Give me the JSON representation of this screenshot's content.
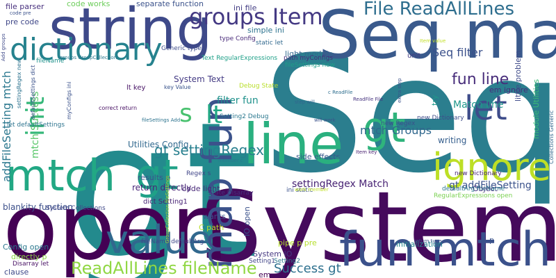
{
  "words": [
    {
      "text": "gt",
      "color": "#238a8d"
    },
    {
      "text": "Seq",
      "color": "#2b7e8e"
    },
    {
      "text": "System",
      "color": "#450a5c"
    },
    {
      "text": "open",
      "color": "#440154"
    },
    {
      "text": "Seq map",
      "color": "#3a5a8c"
    },
    {
      "text": "string",
      "color": "#3e4989"
    },
    {
      "text": "line",
      "color": "#2ab07f"
    },
    {
      "text": "fun mtch",
      "color": "#3b518b"
    },
    {
      "text": "mtch",
      "color": "#22a884"
    },
    {
      "text": "value",
      "color": "#31688e"
    },
    {
      "text": "map fun",
      "color": "#3b528b"
    },
    {
      "text": "ignore",
      "color": "#bddf26"
    },
    {
      "text": "gt",
      "color": "#2fb47c"
    },
    {
      "text": "gt",
      "color": "#1fa187"
    },
    {
      "text": "let",
      "color": "#3e4c8a"
    },
    {
      "text": "dictionary",
      "color": "#26828e"
    },
    {
      "text": "groups Item",
      "color": "#443983"
    },
    {
      "text": "init",
      "color": "#35b779"
    },
    {
      "text": "lt",
      "color": "#22a884"
    },
    {
      "text": "s",
      "color": "#48c16e"
    },
    {
      "text": "File ReadAllLines",
      "color": "#2e6e8e"
    },
    {
      "text": "ReadAllLines fileName",
      "color": "#90d743"
    },
    {
      "text": "fun line",
      "color": "#472c7a"
    },
    {
      "text": "gt settingRegex",
      "color": "#277f8e"
    },
    {
      "text": "addFileSetting mtch",
      "color": "#2a778e"
    },
    {
      "text": "Success gt",
      "color": "#2d708e"
    },
    {
      "text": "mtch Groups",
      "color": "#30678d"
    },
    {
      "text": "Seq filter",
      "color": "#3b518b"
    },
    {
      "text": "Match line",
      "color": "#1f978b"
    },
    {
      "text": "filter fun",
      "color": "#20928c"
    },
    {
      "text": "settingRegex Match",
      "color": "#482374"
    },
    {
      "text": "gt addFileSetting",
      "color": "#3b528b"
    },
    {
      "text": "mtch Success",
      "color": "#56c667"
    },
    {
      "text": "blankity function",
      "color": "#3c4f8a"
    },
    {
      "text": "return directly",
      "color": "#482677"
    },
    {
      "text": "Utilities Config",
      "color": "#31688e"
    },
    {
      "text": "System Text",
      "color": "#443b84"
    },
    {
      "text": "writing",
      "color": "#355e8d"
    },
    {
      "text": "code works",
      "color": "#6ccd5a"
    },
    {
      "text": "separate function",
      "color": "#3b528b"
    },
    {
      "text": "file parser",
      "color": "#472f7d"
    },
    {
      "text": "pre code",
      "color": "#3f4788"
    },
    {
      "text": "ini file",
      "color": "#433d84"
    },
    {
      "text": "light module",
      "color": "#31688e"
    },
    {
      "text": "simple ini",
      "color": "#2c728e"
    },
    {
      "text": "code light",
      "color": "#482878"
    },
    {
      "text": "side effects",
      "color": "#38598c"
    },
    {
      "text": "results p",
      "color": "#3a548c"
    },
    {
      "text": "Config open",
      "color": "#2a778e"
    },
    {
      "text": "initialization",
      "color": "#25858e"
    },
    {
      "text": "IO open",
      "color": "#3b528b"
    },
    {
      "text": "System IO",
      "color": "#453781"
    },
    {
      "text": "pipe p pre",
      "color": "#b5de2b"
    },
    {
      "text": "Setting1",
      "color": "#414487"
    },
    {
      "text": "Setting2",
      "color": "#2a788e"
    },
    {
      "text": "em ignore",
      "color": "#472d7b"
    },
    {
      "text": "little problem",
      "color": "#3e4a89"
    },
    {
      "text": "module Utilities",
      "color": "#3aba76"
    },
    {
      "text": "try",
      "color": "#1f9a8a"
    },
    {
      "text": "new Dictionary",
      "color": "#482475"
    },
    {
      "text": "unit",
      "color": "#443a83"
    },
    {
      "text": "lt key",
      "color": "#471365"
    },
    {
      "text": "dict Setting1",
      "color": "#482475"
    },
    {
      "text": "wants",
      "color": "#3b528b"
    },
    {
      "text": "C path",
      "color": "#b8de29"
    },
    {
      "text": "directly p",
      "color": "#8bd646"
    },
    {
      "text": "clause",
      "color": "#3e4989"
    },
    {
      "text": "Disarray let",
      "color": "#471063"
    },
    {
      "text": "fileName defaultArg",
      "color": "#3f4889"
    },
    {
      "text": "em",
      "color": "#440154"
    },
    {
      "text": "p",
      "color": "#3b528b"
    },
    {
      "text": "Debug State",
      "color": "#b8de29"
    },
    {
      "text": "Setting2 Debug",
      "color": "#2a778e"
    },
    {
      "text": "Object",
      "color": "#46307e"
    },
    {
      "text": "Generic type",
      "color": "#3e4c8a"
    },
    {
      "text": "Text RegularExpressions",
      "color": "#1fa088"
    },
    {
      "text": "type Config",
      "color": "#482979"
    },
    {
      "text": "static let",
      "color": "#31688e"
    },
    {
      "text": "path myConfigs",
      "color": "#472a7a"
    },
    {
      "text": "fileSettings new",
      "color": "#1f9e89"
    },
    {
      "text": "let defaultSettings",
      "color": "#2c738e"
    },
    {
      "text": "fileName",
      "color": "#20928c"
    },
    {
      "text": "new Regex",
      "color": "#3b518b"
    },
    {
      "text": "Regex s",
      "color": "#404588"
    },
    {
      "text": "State Disarray",
      "color": "#462f7c"
    },
    {
      "text": "ini static",
      "color": "#3b528b"
    },
    {
      "text": "System Collections",
      "color": "#3f4788"
    },
    {
      "text": "defaultArg fileName",
      "color": "#2a778e"
    },
    {
      "text": "RegularExpressions open",
      "color": "#7ad151"
    },
    {
      "text": "new Dictionary",
      "color": "#3e4c8a"
    },
    {
      "text": "correct return",
      "color": "#471063"
    },
    {
      "text": "key Value",
      "color": "#3a548c"
    },
    {
      "text": "step will",
      "color": "#32658e"
    },
    {
      "text": "will work",
      "color": "#3b528b"
    },
    {
      "text": "c ReadFile",
      "color": "#2e6e8e"
    },
    {
      "text": "ReadFile File",
      "color": "#46337f"
    },
    {
      "text": "Item value",
      "color": "#c2df23"
    },
    {
      "text": "Item key",
      "color": "#482071"
    },
    {
      "text": "member c",
      "color": "#2a788e"
    },
    {
      "text": "work member",
      "color": "#c0df25"
    },
    {
      "text": "return type",
      "color": "#3b528b"
    },
    {
      "text": "fileSettings Add",
      "color": "#2c738e"
    },
    {
      "text": "code pre",
      "color": "#3b528b"
    },
    {
      "text": "Add groups",
      "color": "#3e4989"
    },
    {
      "text": "groups GroupCollection",
      "color": "#2a788e"
    },
    {
      "text": "myConfigs ini",
      "color": "#3b528b"
    },
    {
      "text": "settingRegex new",
      "color": "#2c728e"
    },
    {
      "text": "defaultSettings dict",
      "color": "#3b528b"
    },
    {
      "text": "GroupCollection fileSettings",
      "color": "#a5db36"
    },
    {
      "text": "extra step",
      "color": "#3b528b"
    },
    {
      "text": "Collections Generic",
      "color": "#31688e"
    }
  ]
}
